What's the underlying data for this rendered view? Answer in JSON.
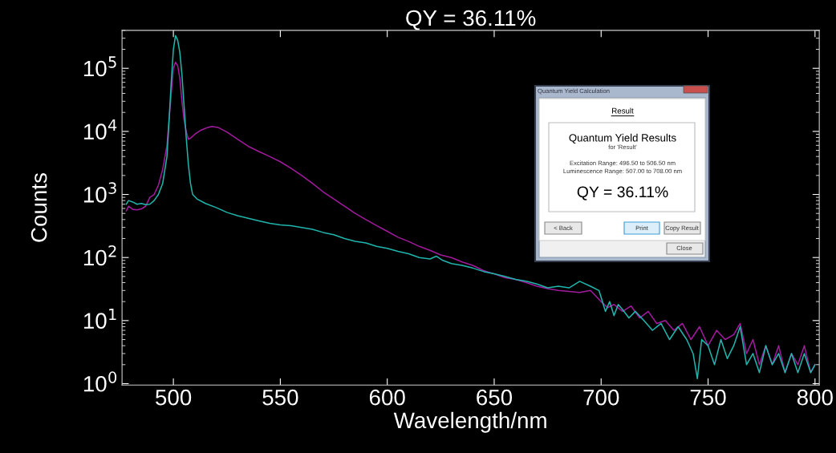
{
  "chart_data": {
    "type": "line",
    "title": "QY = 36.11%",
    "xlabel": "Wavelength/nm",
    "ylabel": "Counts",
    "log": true,
    "xlim": [
      476,
      802
    ],
    "xticks": [
      500,
      550,
      600,
      650,
      700,
      750,
      800
    ],
    "ylim": [
      0.95,
      400000
    ],
    "yticks": [
      {
        "value": 1,
        "label": "10$^{0}$"
      },
      {
        "value": 10,
        "label": "10$^{1}$"
      },
      {
        "value": 100,
        "label": "10$^{2}$"
      },
      {
        "value": 1000,
        "label": "10$^{3}$"
      },
      {
        "value": 10000,
        "label": "10$^{4}$"
      },
      {
        "value": 100000,
        "label": "10$^{5}$"
      }
    ],
    "grid": false,
    "line_style": "solid",
    "series": [
      {
        "color": "#a21a9e",
        "x": [
          478,
          479,
          481,
          483,
          485,
          487,
          489,
          491,
          493,
          495,
          497,
          499,
          500,
          501,
          502,
          503,
          504,
          505,
          506,
          507,
          508,
          510,
          513,
          516,
          518,
          521,
          525,
          530,
          535,
          540,
          545,
          550,
          555,
          560,
          565,
          570,
          575,
          580,
          585,
          590,
          595,
          600,
          605,
          610,
          615,
          620,
          625,
          630,
          635,
          640,
          645,
          650,
          655,
          660,
          665,
          670,
          675,
          680,
          685,
          690,
          695,
          700,
          703,
          706,
          710,
          714,
          718,
          722,
          726,
          730,
          734,
          738,
          742,
          746,
          750,
          754,
          758,
          762,
          765,
          768,
          771,
          774,
          777,
          780,
          783,
          786,
          789,
          792,
          795,
          798,
          800
        ],
        "values": [
          550,
          650,
          580,
          570,
          590,
          650,
          900,
          1000,
          1400,
          2500,
          6000,
          40000,
          100000,
          125000,
          110000,
          70000,
          30000,
          15000,
          10000,
          7500,
          7800,
          9000,
          10500,
          11500,
          12000,
          11500,
          9800,
          7500,
          5800,
          4800,
          4000,
          3300,
          2600,
          2000,
          1500,
          1100,
          850,
          650,
          500,
          400,
          320,
          260,
          210,
          180,
          150,
          130,
          110,
          100,
          85,
          75,
          62,
          55,
          48,
          45,
          40,
          35,
          32,
          30,
          29,
          28,
          30,
          20,
          16,
          18,
          14,
          17,
          11,
          14,
          9,
          10,
          7,
          9,
          5,
          8,
          4,
          7,
          5,
          6,
          9,
          3,
          5,
          2,
          4,
          2,
          4,
          1.5,
          3,
          2,
          4,
          1.5,
          2
        ]
      },
      {
        "color": "#1fb5ac",
        "x": [
          478,
          479,
          481,
          483,
          485,
          487,
          489,
          491,
          493,
          495,
          497,
          499,
          500,
          501,
          502,
          503,
          504,
          505,
          506,
          507,
          508,
          509,
          511,
          515,
          520,
          525,
          530,
          535,
          540,
          545,
          550,
          555,
          560,
          565,
          570,
          575,
          580,
          585,
          590,
          595,
          600,
          605,
          610,
          615,
          620,
          623,
          626,
          630,
          635,
          640,
          645,
          650,
          655,
          660,
          665,
          670,
          675,
          680,
          685,
          690,
          695,
          699,
          702,
          704,
          706,
          708,
          710,
          713,
          716,
          720,
          724,
          728,
          732,
          736,
          740,
          743,
          745,
          747,
          750,
          753,
          756,
          759,
          762,
          765,
          768,
          771,
          774,
          777,
          780,
          783,
          786,
          789,
          792,
          795,
          798,
          800
        ],
        "values": [
          700,
          800,
          760,
          700,
          720,
          690,
          700,
          800,
          1000,
          1500,
          4000,
          60000,
          200000,
          330000,
          280000,
          180000,
          80000,
          25000,
          8000,
          3000,
          1500,
          1000,
          850,
          720,
          620,
          520,
          460,
          420,
          380,
          350,
          330,
          320,
          300,
          280,
          250,
          230,
          200,
          180,
          170,
          150,
          140,
          125,
          115,
          100,
          95,
          105,
          90,
          80,
          75,
          68,
          60,
          55,
          50,
          45,
          42,
          38,
          33,
          35,
          33,
          42,
          35,
          30,
          14,
          20,
          12,
          18,
          15,
          11,
          14,
          10,
          7,
          9,
          5,
          8,
          5,
          3,
          1.2,
          5,
          4,
          2,
          5,
          2.5,
          4,
          8,
          2,
          3,
          1.5,
          4,
          2,
          3,
          1.5,
          3,
          1.5,
          3,
          1.5,
          2
        ]
      }
    ],
    "annotations": [
      "Quantum Yield Calculation",
      "Result",
      "Quantum Yield Results",
      "for 'Result'",
      "Excitation Range: 496.50 to 506.50 nm",
      "Luminescence Range: 507.00 to 708.00 nm",
      "QY = 36.11%",
      "< Back",
      "Print",
      "Copy Result",
      "Close"
    ]
  }
}
